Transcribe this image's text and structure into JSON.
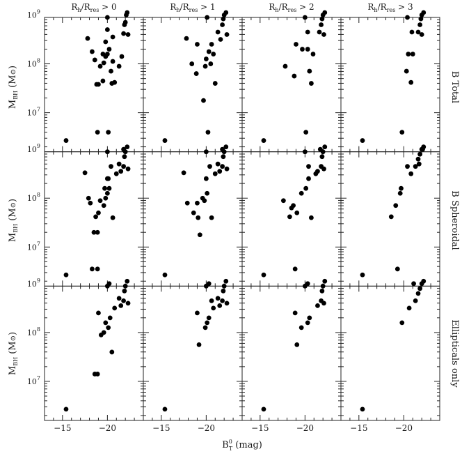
{
  "figure": {
    "xlabel_main": "B",
    "xlabel_sup": "0",
    "xlabel_sub": "T",
    "xlabel_unit": " (mag)",
    "ylabel_main": "M",
    "ylabel_sub": "BH",
    "ylabel_unit": " (M",
    "ylabel_close": ")",
    "column_headers": [
      {
        "pre": "R",
        "sub1": "h",
        "mid": "/R",
        "sub2": "res",
        "post": " > 0"
      },
      {
        "pre": "R",
        "sub1": "h",
        "mid": "/R",
        "sub2": "res",
        "post": " > 1"
      },
      {
        "pre": "R",
        "sub1": "h",
        "mid": "/R",
        "sub2": "res",
        "post": " > 2"
      },
      {
        "pre": "R",
        "sub1": "h",
        "mid": "/R",
        "sub2": "res",
        "post": " > 3"
      }
    ],
    "row_labels": [
      "B Total",
      "B Spheroidal",
      "Ellipticals only"
    ]
  },
  "chart_data": {
    "type": "scatter",
    "xlim": [
      -13,
      -24
    ],
    "ylim_log10": [
      6.2,
      8.95
    ],
    "x_ticks": [
      -15,
      -20
    ],
    "x_tick_labels": [
      "−15",
      "−20"
    ],
    "y_ticks_log10": [
      7,
      8,
      9
    ],
    "y_tick_labels": [
      {
        "base": "10",
        "exp": "7"
      },
      {
        "base": "10",
        "exp": "8"
      },
      {
        "base": "10",
        "exp": "9"
      }
    ],
    "grid": false,
    "panels": [
      {
        "row": 0,
        "col": 0,
        "points": [
          [
            -15.4,
            6.43
          ],
          [
            -17.8,
            8.52
          ],
          [
            -18.3,
            8.25
          ],
          [
            -18.6,
            8.08
          ],
          [
            -18.8,
            7.58
          ],
          [
            -18.9,
            6.6
          ],
          [
            -19.0,
            7.58
          ],
          [
            -19.2,
            7.95
          ],
          [
            -19.5,
            7.65
          ],
          [
            -19.5,
            8.2
          ],
          [
            -19.6,
            8.02
          ],
          [
            -19.8,
            8.15
          ],
          [
            -19.8,
            8.45
          ],
          [
            -20.0,
            8.95
          ],
          [
            -20.0,
            8.2
          ],
          [
            -20.1,
            6.6
          ],
          [
            -20.2,
            8.3
          ],
          [
            -20.4,
            7.85
          ],
          [
            -20.5,
            7.6
          ],
          [
            -20.6,
            8.05
          ],
          [
            -20.6,
            8.55
          ],
          [
            -20.8,
            7.62
          ],
          [
            -21.3,
            7.95
          ],
          [
            -21.6,
            8.15
          ],
          [
            -21.8,
            8.62
          ],
          [
            -21.9,
            8.8
          ],
          [
            -22.0,
            8.85
          ],
          [
            -22.1,
            9.0
          ],
          [
            -22.2,
            9.05
          ],
          [
            -22.3,
            8.6
          ],
          [
            -21.8,
            6.25
          ],
          [
            -20.0,
            8.7
          ]
        ]
      },
      {
        "row": 0,
        "col": 1,
        "points": [
          [
            -15.4,
            6.43
          ],
          [
            -17.8,
            8.52
          ],
          [
            -18.4,
            8.0
          ],
          [
            -18.9,
            7.8
          ],
          [
            -19.0,
            8.4
          ],
          [
            -19.7,
            7.25
          ],
          [
            -19.9,
            7.95
          ],
          [
            -20.0,
            8.1
          ],
          [
            -20.1,
            8.95
          ],
          [
            -20.2,
            6.6
          ],
          [
            -20.3,
            8.25
          ],
          [
            -20.5,
            8.0
          ],
          [
            -20.8,
            8.2
          ],
          [
            -21.0,
            7.6
          ],
          [
            -21.3,
            8.65
          ],
          [
            -21.6,
            8.5
          ],
          [
            -21.8,
            8.8
          ],
          [
            -21.9,
            8.92
          ],
          [
            -22.0,
            9.0
          ],
          [
            -22.2,
            9.05
          ],
          [
            -22.3,
            8.6
          ],
          [
            -21.8,
            6.25
          ],
          [
            -20.6,
            8.4
          ]
        ]
      },
      {
        "row": 0,
        "col": 2,
        "points": [
          [
            -15.4,
            6.43
          ],
          [
            -17.8,
            7.95
          ],
          [
            -18.8,
            7.75
          ],
          [
            -19.0,
            8.4
          ],
          [
            -19.7,
            8.3
          ],
          [
            -20.0,
            8.95
          ],
          [
            -20.1,
            6.6
          ],
          [
            -20.3,
            8.3
          ],
          [
            -20.5,
            7.85
          ],
          [
            -20.7,
            7.6
          ],
          [
            -20.9,
            8.2
          ],
          [
            -21.6,
            8.65
          ],
          [
            -21.8,
            8.8
          ],
          [
            -21.9,
            8.92
          ],
          [
            -22.0,
            9.0
          ],
          [
            -22.2,
            9.05
          ],
          [
            -22.1,
            8.6
          ],
          [
            -21.7,
            6.25
          ],
          [
            -20.3,
            8.65
          ]
        ]
      },
      {
        "row": 0,
        "col": 3,
        "points": [
          [
            -15.4,
            6.43
          ],
          [
            -19.8,
            6.6
          ],
          [
            -20.3,
            7.85
          ],
          [
            -20.4,
            8.95
          ],
          [
            -20.5,
            8.2
          ],
          [
            -20.8,
            7.62
          ],
          [
            -21.0,
            8.2
          ],
          [
            -21.6,
            8.65
          ],
          [
            -21.8,
            8.8
          ],
          [
            -21.9,
            8.92
          ],
          [
            -22.0,
            9.0
          ],
          [
            -22.2,
            9.05
          ],
          [
            -22.0,
            8.6
          ],
          [
            -22.1,
            6.25
          ],
          [
            -20.9,
            8.65
          ]
        ]
      },
      {
        "row": 1,
        "col": 0,
        "points": [
          [
            -15.4,
            6.43
          ],
          [
            -17.5,
            8.52
          ],
          [
            -17.9,
            8.0
          ],
          [
            -18.1,
            7.9
          ],
          [
            -18.3,
            6.55
          ],
          [
            -18.5,
            7.3
          ],
          [
            -18.7,
            7.62
          ],
          [
            -18.9,
            6.55
          ],
          [
            -18.9,
            7.3
          ],
          [
            -19.0,
            7.7
          ],
          [
            -19.2,
            7.95
          ],
          [
            -19.6,
            7.85
          ],
          [
            -19.7,
            8.2
          ],
          [
            -19.8,
            8.0
          ],
          [
            -20.0,
            8.95
          ],
          [
            -20.0,
            8.1
          ],
          [
            -20.1,
            8.4
          ],
          [
            -20.2,
            6.25
          ],
          [
            -20.2,
            8.2
          ],
          [
            -20.4,
            8.65
          ],
          [
            -20.6,
            7.6
          ],
          [
            -21.0,
            8.5
          ],
          [
            -21.3,
            8.7
          ],
          [
            -21.5,
            8.55
          ],
          [
            -21.8,
            8.65
          ],
          [
            -21.9,
            8.85
          ],
          [
            -22.0,
            8.95
          ],
          [
            -22.2,
            9.05
          ],
          [
            -22.3,
            8.6
          ],
          [
            -20.0,
            8.4
          ]
        ]
      },
      {
        "row": 1,
        "col": 1,
        "points": [
          [
            -15.4,
            6.43
          ],
          [
            -17.5,
            8.52
          ],
          [
            -17.9,
            7.9
          ],
          [
            -18.6,
            7.7
          ],
          [
            -19.0,
            7.9
          ],
          [
            -19.1,
            7.6
          ],
          [
            -19.3,
            7.25
          ],
          [
            -19.6,
            8.0
          ],
          [
            -19.8,
            7.95
          ],
          [
            -20.0,
            8.95
          ],
          [
            -20.1,
            8.1
          ],
          [
            -20.3,
            6.25
          ],
          [
            -20.4,
            8.65
          ],
          [
            -20.6,
            7.6
          ],
          [
            -21.0,
            8.5
          ],
          [
            -21.3,
            8.7
          ],
          [
            -21.5,
            8.55
          ],
          [
            -21.8,
            8.65
          ],
          [
            -21.9,
            8.85
          ],
          [
            -22.0,
            8.95
          ],
          [
            -22.2,
            9.05
          ],
          [
            -22.3,
            8.6
          ],
          [
            -20.0,
            8.4
          ]
        ]
      },
      {
        "row": 1,
        "col": 2,
        "points": [
          [
            -15.4,
            6.43
          ],
          [
            -17.6,
            7.95
          ],
          [
            -18.3,
            7.62
          ],
          [
            -18.5,
            7.8
          ],
          [
            -18.7,
            7.85
          ],
          [
            -18.9,
            6.55
          ],
          [
            -19.1,
            7.7
          ],
          [
            -19.6,
            8.1
          ],
          [
            -20.0,
            8.95
          ],
          [
            -20.1,
            8.2
          ],
          [
            -20.3,
            6.25
          ],
          [
            -20.4,
            8.65
          ],
          [
            -20.7,
            7.6
          ],
          [
            -21.2,
            8.5
          ],
          [
            -21.4,
            8.55
          ],
          [
            -21.8,
            8.65
          ],
          [
            -21.9,
            8.85
          ],
          [
            -22.0,
            8.95
          ],
          [
            -22.2,
            9.05
          ],
          [
            -22.1,
            8.6
          ],
          [
            -20.4,
            8.4
          ]
        ]
      },
      {
        "row": 1,
        "col": 3,
        "points": [
          [
            -15.4,
            6.43
          ],
          [
            -18.6,
            7.62
          ],
          [
            -19.1,
            7.85
          ],
          [
            -19.3,
            6.55
          ],
          [
            -19.6,
            8.1
          ],
          [
            -19.7,
            8.2
          ],
          [
            -20.4,
            8.65
          ],
          [
            -20.8,
            8.5
          ],
          [
            -21.3,
            8.65
          ],
          [
            -21.6,
            8.8
          ],
          [
            -21.8,
            8.9
          ],
          [
            -22.0,
            9.0
          ],
          [
            -22.2,
            9.05
          ],
          [
            -21.1,
            6.25
          ],
          [
            -21.7,
            8.7
          ]
        ]
      },
      {
        "row": 2,
        "col": 0,
        "points": [
          [
            -15.4,
            6.43
          ],
          [
            -18.6,
            7.15
          ],
          [
            -18.9,
            7.15
          ],
          [
            -19.0,
            8.4
          ],
          [
            -19.3,
            7.95
          ],
          [
            -19.6,
            8.0
          ],
          [
            -19.8,
            8.2
          ],
          [
            -20.0,
            8.95
          ],
          [
            -20.1,
            8.1
          ],
          [
            -20.3,
            8.3
          ],
          [
            -20.5,
            7.6
          ],
          [
            -20.8,
            8.5
          ],
          [
            -21.3,
            8.7
          ],
          [
            -21.5,
            8.55
          ],
          [
            -21.8,
            8.65
          ],
          [
            -21.9,
            8.85
          ],
          [
            -22.0,
            8.95
          ],
          [
            -22.2,
            9.05
          ],
          [
            -22.3,
            8.6
          ]
        ]
      },
      {
        "row": 2,
        "col": 1,
        "points": [
          [
            -15.4,
            6.43
          ],
          [
            -19.0,
            8.4
          ],
          [
            -19.2,
            7.75
          ],
          [
            -19.9,
            8.1
          ],
          [
            -20.0,
            8.95
          ],
          [
            -20.1,
            8.2
          ],
          [
            -20.3,
            8.3
          ],
          [
            -20.6,
            8.65
          ],
          [
            -20.8,
            8.5
          ],
          [
            -21.3,
            8.7
          ],
          [
            -21.5,
            8.55
          ],
          [
            -21.8,
            8.65
          ],
          [
            -21.9,
            8.85
          ],
          [
            -22.0,
            8.95
          ],
          [
            -22.2,
            9.05
          ],
          [
            -22.3,
            8.6
          ]
        ]
      },
      {
        "row": 2,
        "col": 2,
        "points": [
          [
            -15.4,
            6.43
          ],
          [
            -18.9,
            8.4
          ],
          [
            -19.1,
            7.75
          ],
          [
            -19.6,
            8.1
          ],
          [
            -20.0,
            8.95
          ],
          [
            -20.3,
            8.2
          ],
          [
            -20.5,
            8.3
          ],
          [
            -21.4,
            8.55
          ],
          [
            -21.8,
            8.65
          ],
          [
            -21.9,
            8.85
          ],
          [
            -22.0,
            8.95
          ],
          [
            -22.2,
            9.05
          ],
          [
            -22.1,
            8.6
          ]
        ]
      },
      {
        "row": 2,
        "col": 3,
        "points": [
          [
            -15.4,
            6.43
          ],
          [
            -19.8,
            8.2
          ],
          [
            -20.6,
            8.5
          ],
          [
            -21.3,
            8.65
          ],
          [
            -21.6,
            8.8
          ],
          [
            -21.8,
            8.9
          ],
          [
            -22.0,
            9.0
          ],
          [
            -22.2,
            9.05
          ]
        ]
      }
    ]
  }
}
